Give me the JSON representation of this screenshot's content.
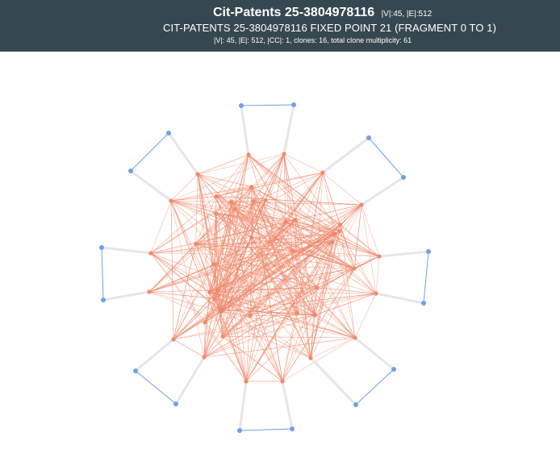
{
  "header": {
    "title": "Cit-Patents 25-3804978116",
    "title_stats": "|V|:45, |E|:512",
    "subtitle": "CIT-PATENTS 25-3804978116 FIXED POINT 21 (FRAGMENT 0 TO 1)",
    "stats": "|V|: 45, |E|: 512, |CC|: 1, clones: 16, total clone multiplicity: 61"
  },
  "graph": {
    "core_color": "#f08a6c",
    "clone_color": "#6fa0e8",
    "spoke_color": "#e4e6ee",
    "vertex_count": 45,
    "edge_count": 512,
    "clone_count": 16
  }
}
